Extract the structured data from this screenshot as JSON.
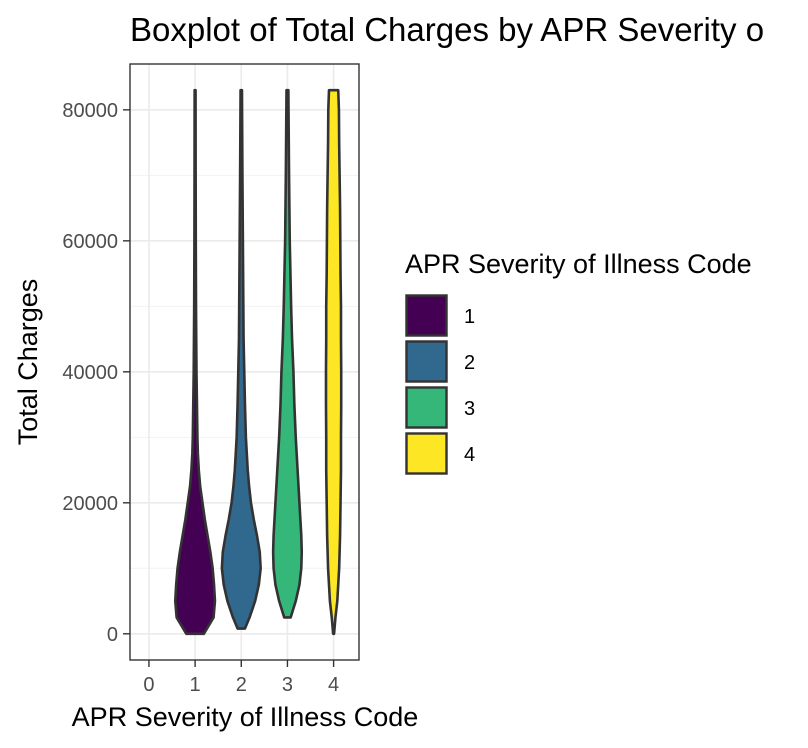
{
  "chart_data": {
    "type": "violin",
    "title": "Boxplot of Total Charges by APR Severity o",
    "xlabel": "APR Severity of Illness Code",
    "ylabel": "Total Charges",
    "x_categories": [
      "0",
      "1",
      "2",
      "3",
      "4"
    ],
    "xlim": [
      -0.41,
      4.55
    ],
    "ylim": [
      -4000,
      87000
    ],
    "y_ticks": [
      0,
      20000,
      40000,
      60000,
      80000
    ],
    "grid": true,
    "legend": {
      "title": "APR Severity of Illness Code",
      "placement": "right",
      "entries": [
        {
          "label": "1",
          "color": "#440154"
        },
        {
          "label": "2",
          "color": "#31688E"
        },
        {
          "label": "3",
          "color": "#35B779"
        },
        {
          "label": "4",
          "color": "#FDE725"
        }
      ]
    },
    "series": [
      {
        "category": "1",
        "color": "#440154",
        "min": 0,
        "max": 83000,
        "density": [
          [
            0,
            0.19
          ],
          [
            2500,
            0.4
          ],
          [
            5000,
            0.43
          ],
          [
            7500,
            0.41
          ],
          [
            10000,
            0.38
          ],
          [
            12500,
            0.33
          ],
          [
            15000,
            0.27
          ],
          [
            17500,
            0.21
          ],
          [
            20000,
            0.16
          ],
          [
            22500,
            0.11
          ],
          [
            25000,
            0.08
          ],
          [
            27500,
            0.06
          ],
          [
            30000,
            0.05
          ],
          [
            35000,
            0.04
          ],
          [
            40000,
            0.03
          ],
          [
            45000,
            0.025
          ],
          [
            50000,
            0.02
          ],
          [
            60000,
            0.015
          ],
          [
            70000,
            0.012
          ],
          [
            83000,
            0.01
          ]
        ]
      },
      {
        "category": "2",
        "color": "#31688E",
        "min": 800,
        "max": 83000,
        "density": [
          [
            800,
            0.08
          ],
          [
            2500,
            0.18
          ],
          [
            5000,
            0.3
          ],
          [
            7500,
            0.38
          ],
          [
            10000,
            0.42
          ],
          [
            12500,
            0.4
          ],
          [
            15000,
            0.34
          ],
          [
            17500,
            0.27
          ],
          [
            20000,
            0.21
          ],
          [
            22500,
            0.17
          ],
          [
            25000,
            0.14
          ],
          [
            27500,
            0.12
          ],
          [
            30000,
            0.1
          ],
          [
            35000,
            0.08
          ],
          [
            40000,
            0.065
          ],
          [
            45000,
            0.05
          ],
          [
            50000,
            0.045
          ],
          [
            60000,
            0.035
          ],
          [
            70000,
            0.025
          ],
          [
            83000,
            0.015
          ]
        ]
      },
      {
        "category": "3",
        "color": "#35B779",
        "min": 2500,
        "max": 83000,
        "density": [
          [
            2500,
            0.07
          ],
          [
            5000,
            0.18
          ],
          [
            7500,
            0.26
          ],
          [
            10000,
            0.3
          ],
          [
            12500,
            0.31
          ],
          [
            15000,
            0.3
          ],
          [
            17500,
            0.28
          ],
          [
            20000,
            0.26
          ],
          [
            22500,
            0.24
          ],
          [
            25000,
            0.22
          ],
          [
            27500,
            0.2
          ],
          [
            30000,
            0.18
          ],
          [
            35000,
            0.15
          ],
          [
            40000,
            0.13
          ],
          [
            45000,
            0.1
          ],
          [
            50000,
            0.08
          ],
          [
            60000,
            0.05
          ],
          [
            70000,
            0.035
          ],
          [
            83000,
            0.02
          ]
        ]
      },
      {
        "category": "4",
        "color": "#FDE725",
        "min": 0,
        "max": 83000,
        "density": [
          [
            0,
            0.01
          ],
          [
            2500,
            0.04
          ],
          [
            5000,
            0.08
          ],
          [
            7500,
            0.1
          ],
          [
            10000,
            0.12
          ],
          [
            15000,
            0.14
          ],
          [
            20000,
            0.15
          ],
          [
            25000,
            0.16
          ],
          [
            30000,
            0.16
          ],
          [
            35000,
            0.165
          ],
          [
            40000,
            0.165
          ],
          [
            45000,
            0.16
          ],
          [
            50000,
            0.16
          ],
          [
            55000,
            0.15
          ],
          [
            60000,
            0.145
          ],
          [
            65000,
            0.14
          ],
          [
            70000,
            0.13
          ],
          [
            75000,
            0.12
          ],
          [
            80000,
            0.115
          ],
          [
            83000,
            0.1
          ]
        ]
      }
    ]
  }
}
